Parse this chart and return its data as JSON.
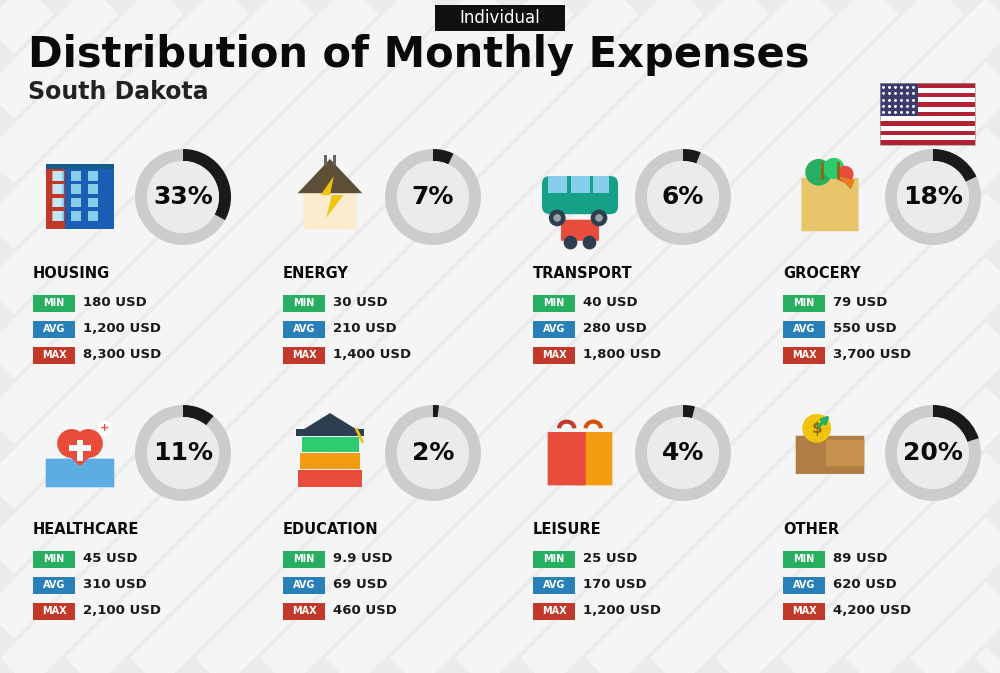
{
  "title": "Distribution of Monthly Expenses",
  "subtitle": "South Dakota",
  "tag": "Individual",
  "bg_color": "#ebebeb",
  "categories": [
    {
      "name": "HOUSING",
      "pct": 33,
      "min_val": "180 USD",
      "avg_val": "1,200 USD",
      "max_val": "8,300 USD",
      "icon": "housing",
      "row": 0,
      "col": 0
    },
    {
      "name": "ENERGY",
      "pct": 7,
      "min_val": "30 USD",
      "avg_val": "210 USD",
      "max_val": "1,400 USD",
      "icon": "energy",
      "row": 0,
      "col": 1
    },
    {
      "name": "TRANSPORT",
      "pct": 6,
      "min_val": "40 USD",
      "avg_val": "280 USD",
      "max_val": "1,800 USD",
      "icon": "transport",
      "row": 0,
      "col": 2
    },
    {
      "name": "GROCERY",
      "pct": 18,
      "min_val": "79 USD",
      "avg_val": "550 USD",
      "max_val": "3,700 USD",
      "icon": "grocery",
      "row": 0,
      "col": 3
    },
    {
      "name": "HEALTHCARE",
      "pct": 11,
      "min_val": "45 USD",
      "avg_val": "310 USD",
      "max_val": "2,100 USD",
      "icon": "healthcare",
      "row": 1,
      "col": 0
    },
    {
      "name": "EDUCATION",
      "pct": 2,
      "min_val": "9.9 USD",
      "avg_val": "69 USD",
      "max_val": "460 USD",
      "icon": "education",
      "row": 1,
      "col": 1
    },
    {
      "name": "LEISURE",
      "pct": 4,
      "min_val": "25 USD",
      "avg_val": "170 USD",
      "max_val": "1,200 USD",
      "icon": "leisure",
      "row": 1,
      "col": 2
    },
    {
      "name": "OTHER",
      "pct": 20,
      "min_val": "89 USD",
      "avg_val": "620 USD",
      "max_val": "4,200 USD",
      "icon": "other",
      "row": 1,
      "col": 3
    }
  ],
  "min_color": "#27ae60",
  "avg_color": "#2980b9",
  "max_color": "#c0392b",
  "arc_bg_color": "#cccccc",
  "arc_fill_color": "#1a1a1a",
  "title_fontsize": 30,
  "subtitle_fontsize": 17,
  "tag_fontsize": 12,
  "cat_fontsize": 10.5,
  "pct_fontsize": 18,
  "val_fontsize": 9.5,
  "badge_fontsize": 7
}
